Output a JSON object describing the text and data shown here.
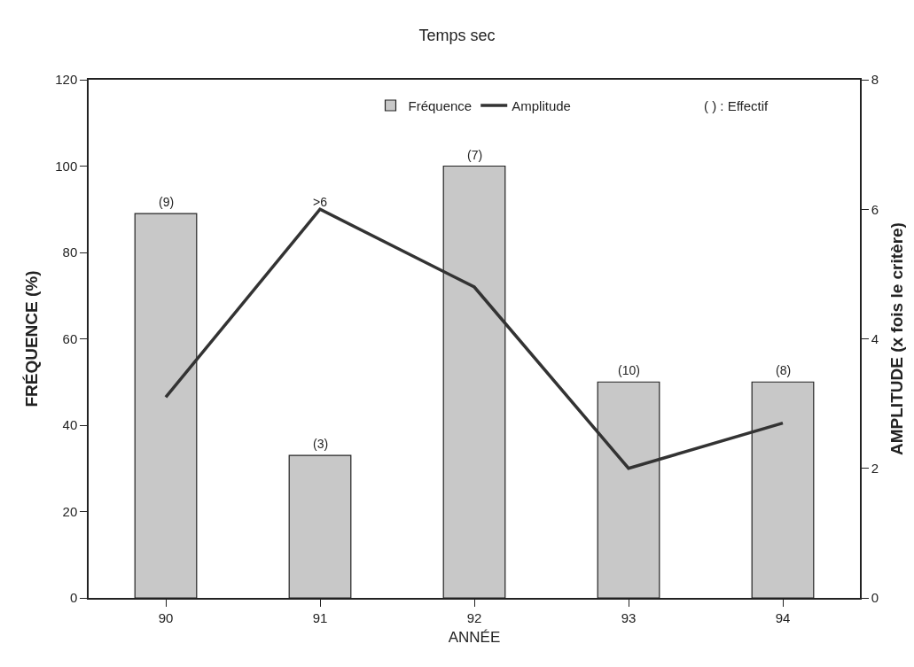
{
  "chart_data": {
    "type": "bar",
    "title": "Temps sec",
    "xlabel": "ANNÉE",
    "ylabel": "FRÉQUENCE (%)",
    "y2label": "AMPLITUDE (x fois le critère)",
    "categories": [
      "90",
      "91",
      "92",
      "93",
      "94"
    ],
    "series": [
      {
        "name": "Fréquence",
        "color": "#c8c8c8",
        "values": [
          89,
          33,
          100,
          50,
          50
        ]
      },
      {
        "name": "Amplitude",
        "type": "line",
        "axis": "y2",
        "color": "#333333",
        "values": [
          3.1,
          6,
          4.8,
          2,
          2.7
        ],
        "value_labels": [
          null,
          ">6",
          null,
          null,
          null
        ]
      }
    ],
    "ylim": [
      0,
      120
    ],
    "yticks": [
      0,
      20,
      40,
      60,
      80,
      100,
      120
    ],
    "y2lim": [
      0,
      8
    ],
    "y2ticks": [
      0,
      2,
      4,
      6,
      8
    ],
    "annotations": [
      "( ) : Effectif",
      {
        "text": "(9)",
        "x": "90",
        "y": 89
      },
      {
        "text": "(3)",
        "x": "91",
        "y": 33
      },
      {
        "text": "(7)",
        "x": "92",
        "y": 100
      },
      {
        "text": "(10)",
        "x": "93",
        "y": 50
      },
      {
        "text": "(8)",
        "x": "94",
        "y": 50
      }
    ],
    "legend": "top",
    "marker": "none",
    "line_style": "solid"
  }
}
